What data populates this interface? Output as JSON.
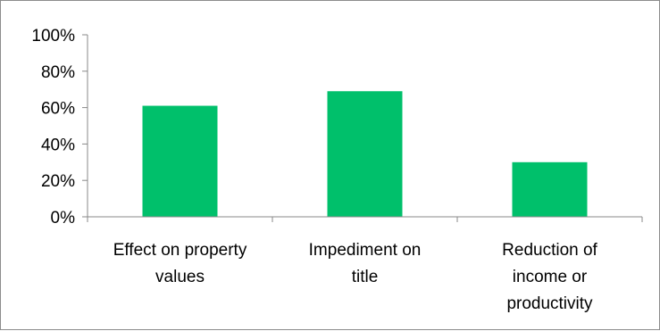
{
  "chart_data": {
    "type": "bar",
    "categories": [
      [
        "Effect on property",
        "values"
      ],
      [
        "Impediment on",
        "title"
      ],
      [
        "Reduction of",
        "income or",
        "productivity"
      ]
    ],
    "values": [
      61,
      69,
      30
    ],
    "ylim": [
      0,
      100
    ],
    "yticks": [
      "0%",
      "20%",
      "40%",
      "60%",
      "80%",
      "100%"
    ],
    "ytick_values": [
      0,
      20,
      40,
      60,
      80,
      100
    ],
    "grid": false,
    "legend": "none",
    "bar_color": "#00c06b",
    "axis_color": "#888888"
  }
}
